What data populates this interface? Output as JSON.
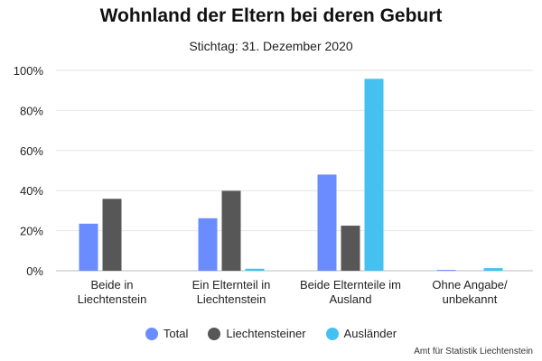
{
  "chart_data": {
    "type": "bar",
    "title": "Wohnland der Eltern bei deren Geburt",
    "subtitle": "Stichtag: 31. Dezember 2020",
    "categories": [
      [
        "Beide in",
        "Liechtenstein"
      ],
      [
        "Ein Elternteil in",
        "Liechtenstein"
      ],
      [
        "Beide Elternteile im",
        "Ausland"
      ],
      [
        "Ohne Angabe/",
        "unbekannt"
      ]
    ],
    "series": [
      {
        "name": "Total",
        "color": "#6a8cff",
        "values": [
          23.5,
          26.2,
          48.0,
          0.4
        ]
      },
      {
        "name": "Liechtensteiner",
        "color": "#575757",
        "values": [
          35.9,
          39.9,
          22.5,
          0.0
        ]
      },
      {
        "name": "Ausländer",
        "color": "#45c1f0",
        "values": [
          0.0,
          1.0,
          95.8,
          1.3
        ]
      }
    ],
    "ylim": [
      0,
      100
    ],
    "yticks": [
      0,
      20,
      40,
      60,
      80,
      100
    ],
    "ytick_labels": [
      "0%",
      "20%",
      "40%",
      "60%",
      "80%",
      "100%"
    ],
    "grid": true,
    "legend": "bottom-center",
    "source": "Amt für Statistik Liechtenstein"
  }
}
